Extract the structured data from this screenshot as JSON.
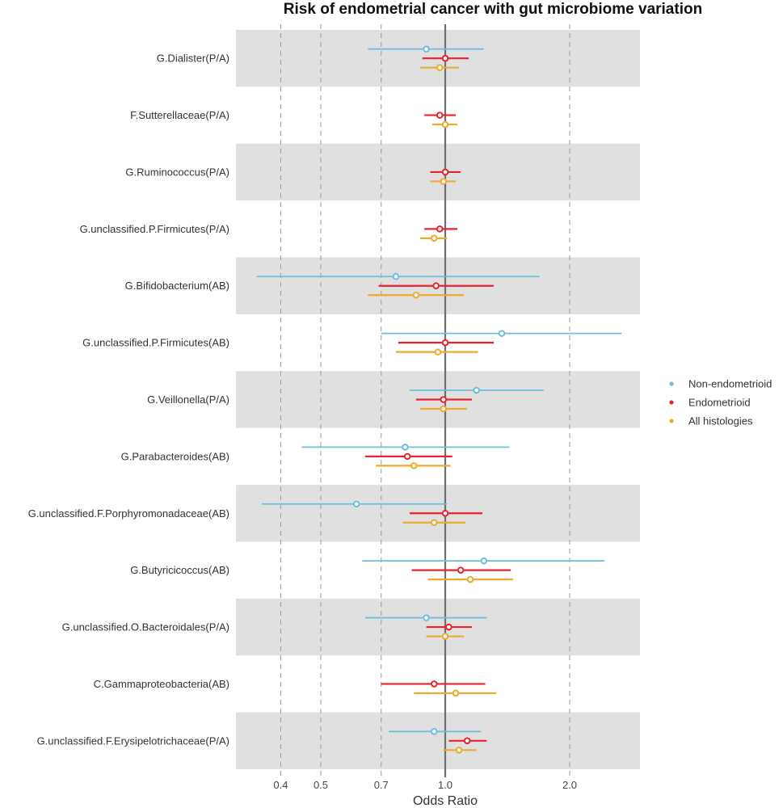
{
  "chart_data": {
    "type": "forest",
    "title": "Risk of endometrial cancer with gut microbiome variation",
    "xlabel": "Odds Ratio",
    "ylabel": "",
    "x_scale": "log",
    "xlim": [
      0.312,
      2.96
    ],
    "x_ticks": [
      0.4,
      0.5,
      0.7,
      1.0,
      2.0
    ],
    "x_tick_labels": [
      "0.4",
      "0.5",
      "0.7",
      "1.0",
      "2.0"
    ],
    "reference_line": 1.0,
    "grid": "vertical dashed at ticks",
    "alternating_row_bands": true,
    "legend": {
      "placement": "right",
      "entries": [
        "Non-endometrioid",
        "Endometrioid",
        "All histologies"
      ]
    },
    "series_colors": {
      "Non-endometrioid": "#6bbfdc",
      "Endometrioid": "#e8232f",
      "All histologies": "#eeaa2c"
    },
    "categories": [
      "G.Dialister(P/A)",
      "F.Sutterellaceae(P/A)",
      "G.Ruminococcus(P/A)",
      "G.unclassified.P.Firmicutes(P/A)",
      "G.Bifidobacterium(AB)",
      "G.unclassified.P.Firmicutes(AB)",
      "G.Veillonella(P/A)",
      "G.Parabacteroides(AB)",
      "G.unclassified.F.Porphyromonadaceae(AB)",
      "G.Butyricicoccus(AB)",
      "G.unclassified.O.Bacteroidales(P/A)",
      "C.Gammaproteobacteria(AB)",
      "G.unclassified.F.Erysipelotrichaceae(P/A)"
    ],
    "series": [
      {
        "name": "Non-endometrioid",
        "points": [
          {
            "or": 0.9,
            "lo": 0.65,
            "hi": 1.24
          },
          null,
          null,
          null,
          {
            "or": 0.76,
            "lo": 0.35,
            "hi": 1.69
          },
          {
            "or": 1.37,
            "lo": 0.7,
            "hi": 2.67
          },
          {
            "or": 1.19,
            "lo": 0.82,
            "hi": 1.73
          },
          {
            "or": 0.8,
            "lo": 0.45,
            "hi": 1.43
          },
          {
            "or": 0.61,
            "lo": 0.36,
            "hi": 1.01
          },
          {
            "or": 1.24,
            "lo": 0.63,
            "hi": 2.43
          },
          {
            "or": 0.9,
            "lo": 0.64,
            "hi": 1.26
          },
          null,
          {
            "or": 0.94,
            "lo": 0.73,
            "hi": 1.22
          }
        ]
      },
      {
        "name": "Endometrioid",
        "points": [
          {
            "or": 1.0,
            "lo": 0.88,
            "hi": 1.14
          },
          {
            "or": 0.97,
            "lo": 0.89,
            "hi": 1.06
          },
          {
            "or": 1.0,
            "lo": 0.92,
            "hi": 1.09
          },
          {
            "or": 0.97,
            "lo": 0.89,
            "hi": 1.07
          },
          {
            "or": 0.95,
            "lo": 0.69,
            "hi": 1.31
          },
          {
            "or": 1.0,
            "lo": 0.77,
            "hi": 1.31
          },
          {
            "or": 0.99,
            "lo": 0.85,
            "hi": 1.16
          },
          {
            "or": 0.81,
            "lo": 0.64,
            "hi": 1.04
          },
          {
            "or": 1.0,
            "lo": 0.82,
            "hi": 1.23
          },
          {
            "or": 1.09,
            "lo": 0.83,
            "hi": 1.44
          },
          {
            "or": 1.02,
            "lo": 0.9,
            "hi": 1.16
          },
          {
            "or": 0.94,
            "lo": 0.7,
            "hi": 1.25
          },
          {
            "or": 1.13,
            "lo": 1.02,
            "hi": 1.26
          }
        ]
      },
      {
        "name": "All histologies",
        "points": [
          {
            "or": 0.97,
            "lo": 0.87,
            "hi": 1.08
          },
          {
            "or": 1.0,
            "lo": 0.93,
            "hi": 1.07
          },
          {
            "or": 0.99,
            "lo": 0.92,
            "hi": 1.06
          },
          {
            "or": 0.94,
            "lo": 0.87,
            "hi": 1.01
          },
          {
            "or": 0.85,
            "lo": 0.65,
            "hi": 1.11
          },
          {
            "or": 0.96,
            "lo": 0.76,
            "hi": 1.2
          },
          {
            "or": 0.99,
            "lo": 0.87,
            "hi": 1.13
          },
          {
            "or": 0.84,
            "lo": 0.68,
            "hi": 1.03
          },
          {
            "or": 0.94,
            "lo": 0.79,
            "hi": 1.12
          },
          {
            "or": 1.15,
            "lo": 0.91,
            "hi": 1.46
          },
          {
            "or": 1.0,
            "lo": 0.9,
            "hi": 1.11
          },
          {
            "or": 1.06,
            "lo": 0.84,
            "hi": 1.33
          },
          {
            "or": 1.08,
            "lo": 0.99,
            "hi": 1.19
          }
        ]
      }
    ],
    "colors": {
      "band": "#e0e0e0",
      "grid": "#9a9a9a",
      "reference_line": "#6e6e6e"
    }
  }
}
